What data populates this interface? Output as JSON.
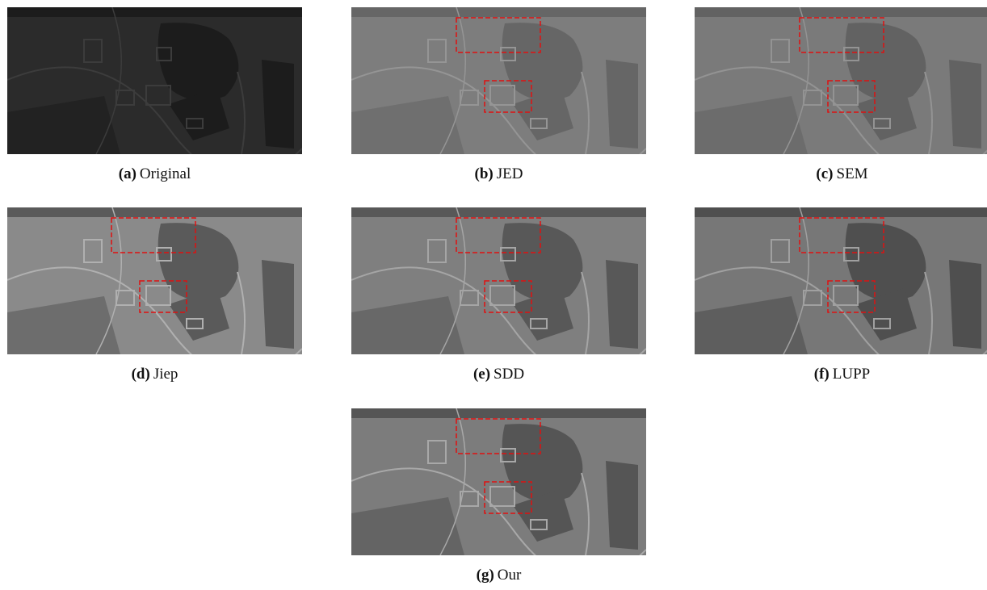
{
  "figure": {
    "panels": [
      {
        "tag": "(a)",
        "name": "Original"
      },
      {
        "tag": "(b)",
        "name": "JED"
      },
      {
        "tag": "(c)",
        "name": "SEM"
      },
      {
        "tag": "(d)",
        "name": "Jiep"
      },
      {
        "tag": "(e)",
        "name": "SDD"
      },
      {
        "tag": "(f)",
        "name": "LUPP"
      },
      {
        "tag": "(g)",
        "name": "Our"
      }
    ]
  }
}
